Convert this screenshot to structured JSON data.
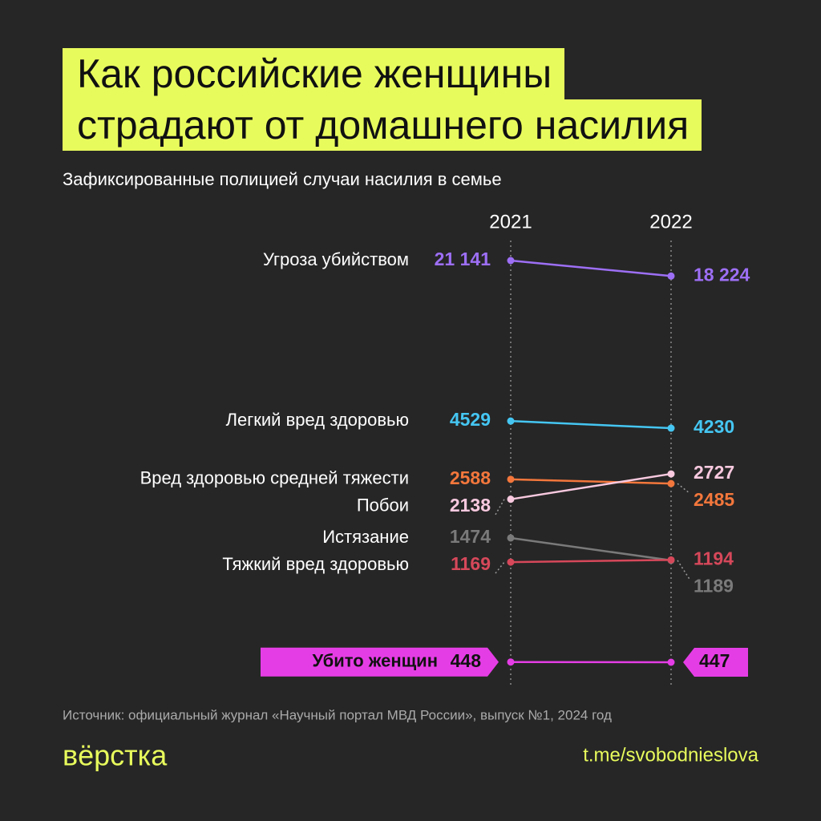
{
  "chart_data": {
    "type": "slope",
    "title": [
      "Как российские женщины",
      "страдают от домашнего насилия"
    ],
    "subtitle": "Зафиксированные полицией случаи насилия в семье",
    "categories": [
      "2021",
      "2022"
    ],
    "series": [
      {
        "name": "Угроза убийством",
        "color": "#9d6ff5",
        "values": [
          21141,
          18224
        ],
        "value_labels": [
          "21 141",
          "18 224"
        ]
      },
      {
        "name": "Легкий вред здоровью",
        "color": "#45c6f2",
        "values": [
          4529,
          4230
        ]
      },
      {
        "name": "Вред здоровью средней тяжести",
        "color": "#f3773c",
        "values": [
          2588,
          2485
        ]
      },
      {
        "name": "Побои",
        "color": "#f8c9df",
        "values": [
          2138,
          2727
        ]
      },
      {
        "name": "Истязание",
        "color": "#7a7a7a",
        "values": [
          1474,
          1189
        ]
      },
      {
        "name": "Тяжкий вред здоровью",
        "color": "#d6485a",
        "values": [
          1169,
          1194
        ]
      },
      {
        "name": "Убито женщин",
        "color": "#e53de6",
        "values": [
          448,
          447
        ],
        "highlight": true
      }
    ],
    "source": "Источник: официальный журнал «Научный портал МВД России», выпуск №1, 2024 год"
  },
  "footer": {
    "logo": "вёрстка",
    "link": "t.me/svobodnieslova"
  }
}
